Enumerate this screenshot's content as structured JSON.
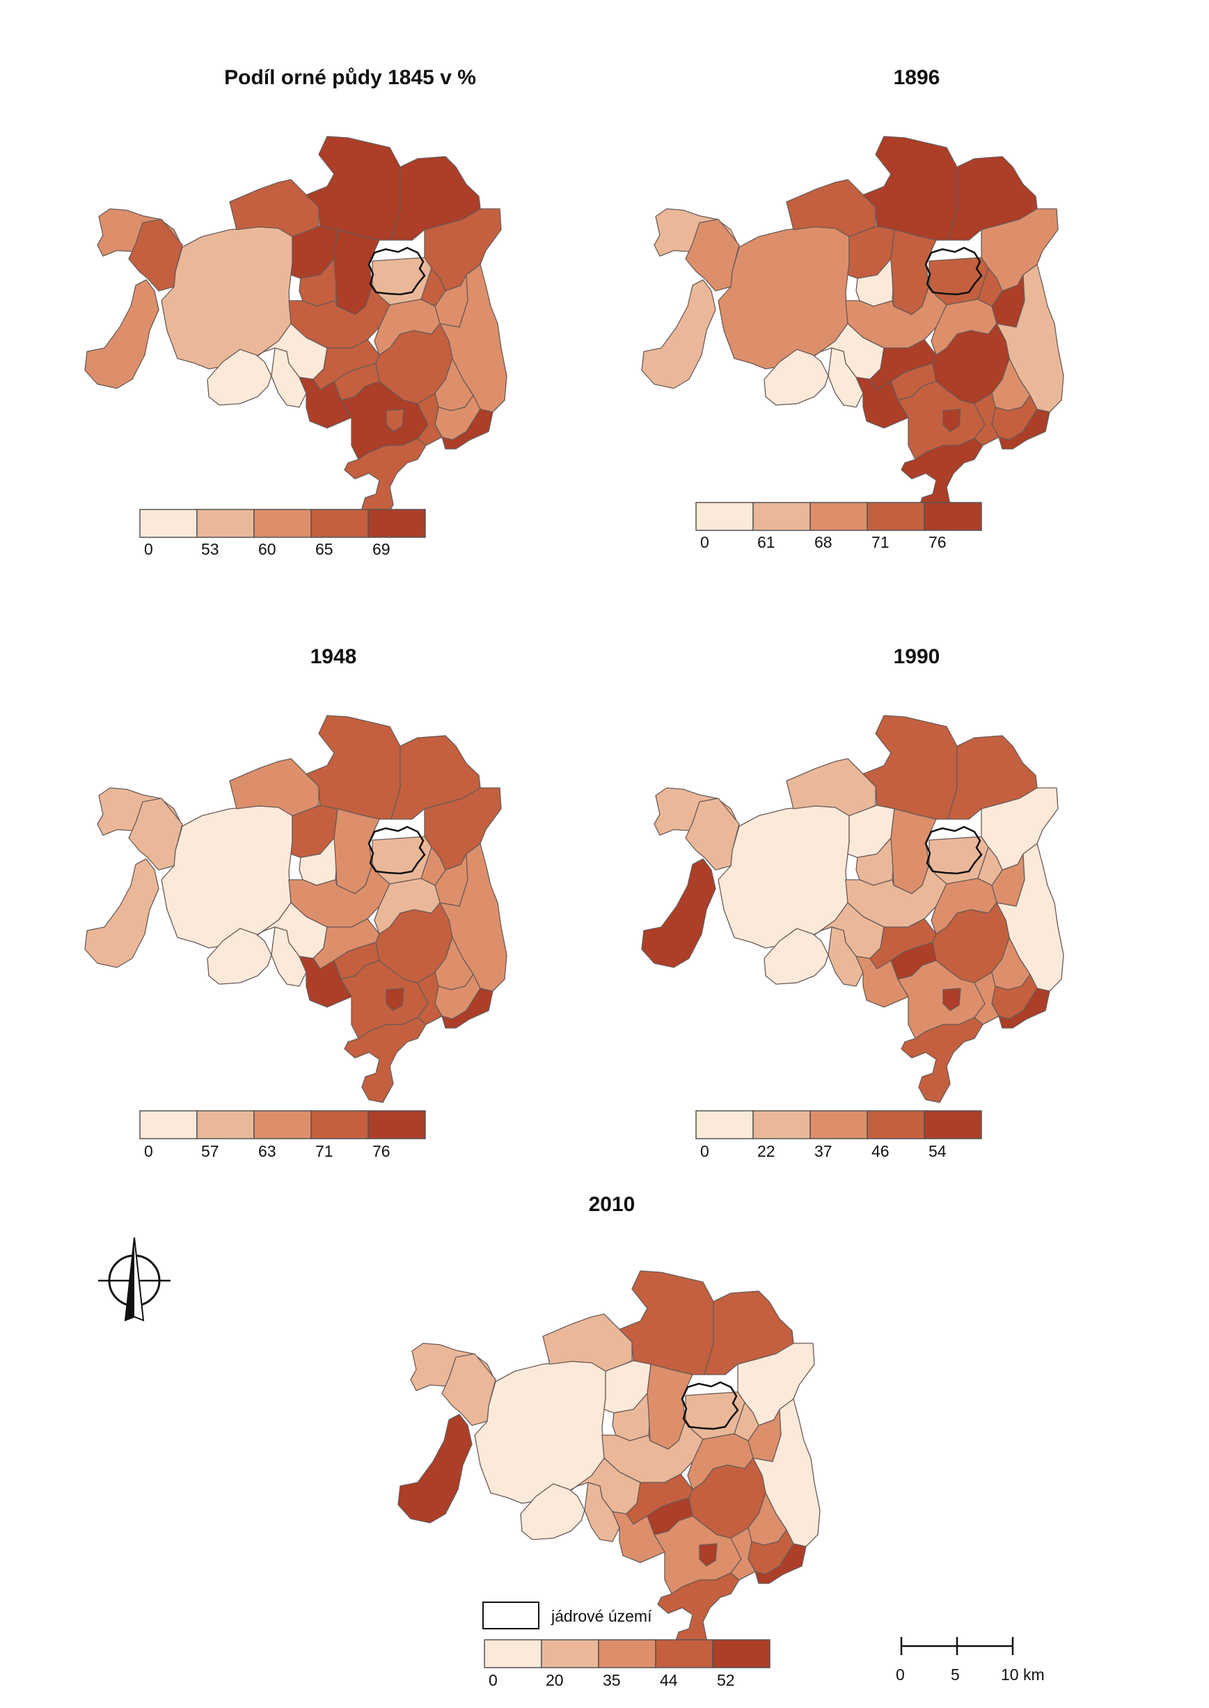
{
  "colors": {
    "classes": [
      "#fbe9d9",
      "#eab899",
      "#dd8f6b",
      "#c4603f",
      "#ad3e28"
    ],
    "border": "#6a5a57",
    "core": "#111111"
  },
  "maps": [
    {
      "id": "m1845",
      "title": "Podíl orné půdy 1845 v %",
      "breaks": [
        "0",
        "53",
        "60",
        "65",
        "69"
      ],
      "classes": [
        2,
        2,
        1,
        3,
        3,
        4,
        4,
        4,
        3,
        4,
        1,
        3,
        2,
        3,
        2,
        3,
        2,
        0,
        0,
        0,
        3,
        3,
        4,
        3,
        4,
        3,
        2,
        2,
        3,
        4,
        3,
        2
      ]
    },
    {
      "id": "m1896",
      "title": "1896",
      "breaks": [
        "0",
        "61",
        "68",
        "71",
        "76"
      ],
      "classes": [
        1,
        1,
        2,
        2,
        3,
        4,
        4,
        3,
        0,
        3,
        3,
        2,
        4,
        2,
        2,
        3,
        1,
        0,
        0,
        0,
        4,
        3,
        4,
        4,
        3,
        4,
        2,
        3,
        3,
        4,
        4,
        2
      ]
    },
    {
      "id": "m1948",
      "title": "1948",
      "breaks": [
        "0",
        "57",
        "63",
        "71",
        "76"
      ],
      "classes": [
        1,
        1,
        0,
        1,
        2,
        3,
        3,
        3,
        0,
        2,
        1,
        3,
        2,
        2,
        1,
        2,
        2,
        0,
        0,
        0,
        2,
        3,
        4,
        3,
        3,
        4,
        2,
        2,
        3,
        4,
        3,
        2
      ]
    },
    {
      "id": "m1990",
      "title": "1990",
      "breaks": [
        "0",
        "22",
        "37",
        "46",
        "54"
      ],
      "classes": [
        1,
        4,
        0,
        1,
        1,
        3,
        3,
        0,
        1,
        2,
        1,
        0,
        2,
        1,
        2,
        1,
        0,
        1,
        0,
        1,
        3,
        4,
        2,
        3,
        2,
        4,
        2,
        3,
        2,
        4,
        3,
        2
      ]
    },
    {
      "id": "m2010",
      "title": "2010",
      "breaks": [
        "0",
        "20",
        "35",
        "44",
        "52"
      ],
      "classes": [
        1,
        4,
        0,
        1,
        1,
        3,
        3,
        0,
        1,
        2,
        1,
        0,
        2,
        1,
        2,
        1,
        0,
        1,
        0,
        1,
        3,
        4,
        2,
        3,
        2,
        4,
        2,
        3,
        2,
        4,
        3,
        2
      ]
    }
  ],
  "legend": {
    "core_label": "jádrové území"
  },
  "scalebar": {
    "ticks": [
      "0",
      "5",
      "10 km"
    ]
  },
  "north_arrow": {
    "icon": "north-arrow-icon"
  }
}
